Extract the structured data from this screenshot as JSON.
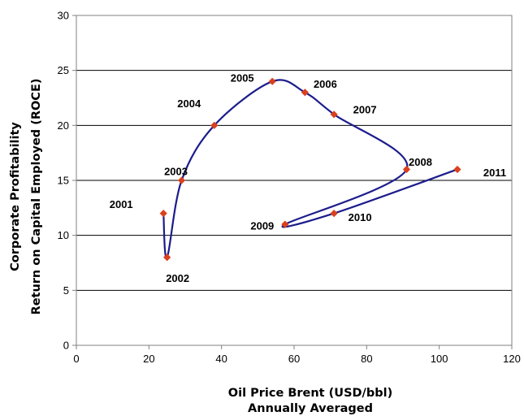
{
  "chart_data": {
    "type": "line",
    "title": "",
    "xlabel": [
      "Oil Price Brent (USD/bbl)",
      "Annually Averaged"
    ],
    "ylabel": [
      "Corporate Profitability",
      "Return on Capital Employed (ROCE)"
    ],
    "xlim": [
      0,
      120
    ],
    "ylim": [
      0,
      30
    ],
    "xticks": [
      0,
      20,
      40,
      60,
      80,
      100,
      120
    ],
    "yticks": [
      0,
      5,
      10,
      15,
      20,
      25,
      30
    ],
    "grid": "horizontal",
    "legend": "none",
    "line_color": "#1c1c8c",
    "marker_color": "#d9411e",
    "points": [
      {
        "label": "2001",
        "x": 24,
        "y": 12
      },
      {
        "label": "2002",
        "x": 25,
        "y": 8
      },
      {
        "label": "2003",
        "x": 29,
        "y": 15
      },
      {
        "label": "2004",
        "x": 38,
        "y": 20
      },
      {
        "label": "2005",
        "x": 54,
        "y": 24
      },
      {
        "label": "2006",
        "x": 63,
        "y": 23
      },
      {
        "label": "2007",
        "x": 71,
        "y": 21
      },
      {
        "label": "2008",
        "x": 91,
        "y": 16
      },
      {
        "label": "2009",
        "x": 57.5,
        "y": 11
      },
      {
        "label": "2010",
        "x": 71,
        "y": 12
      },
      {
        "label": "2011",
        "x": 105,
        "y": 16
      }
    ]
  }
}
